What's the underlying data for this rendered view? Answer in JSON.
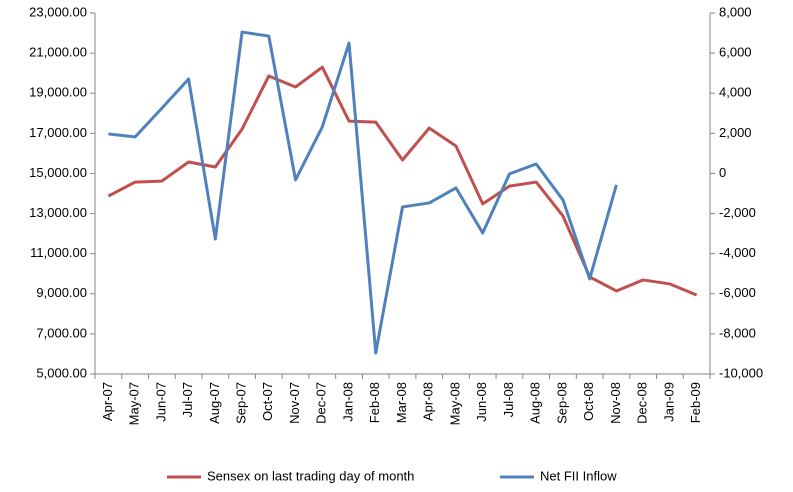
{
  "chart_data": {
    "type": "line",
    "categories": [
      "Apr-07",
      "May-07",
      "Jun-07",
      "Jul-07",
      "Aug-07",
      "Sep-07",
      "Oct-07",
      "Nov-07",
      "Dec-07",
      "Jan-08",
      "Feb-08",
      "Mar-08",
      "Apr-08",
      "May-08",
      "Jun-08",
      "Jul-08",
      "Aug-08",
      "Sep-08",
      "Oct-08",
      "Nov-08",
      "Dec-08",
      "Jan-09",
      "Feb-09"
    ],
    "series": [
      {
        "name": "Sensex on last trading day of month",
        "color": "#c0504d",
        "values": [
          13870,
          14570,
          14620,
          15570,
          15320,
          17210,
          19860,
          19310,
          20300,
          17610,
          17560,
          15670,
          17260,
          16370,
          13480,
          14370,
          14570,
          12880,
          9840,
          9140,
          9690,
          9490,
          8940
        ]
      },
      {
        "name": "Net FII Inflow",
        "color": "#4f81bd",
        "axis": "y2",
        "values": [
          1970,
          1820,
          3250,
          4710,
          -3270,
          7050,
          6850,
          -320,
          2320,
          6500,
          -8950,
          -1670,
          -1470,
          -720,
          -2970,
          -20,
          470,
          -1320,
          -5260,
          -570,
          null,
          null,
          null
        ]
      }
    ],
    "ylim": [
      5000,
      23000
    ],
    "yticks": [
      {
        "value": 5000,
        "label": "5,000.00"
      },
      {
        "value": 7000,
        "label": "7,000.00"
      },
      {
        "value": 9000,
        "label": "9,000.00"
      },
      {
        "value": 11000,
        "label": "11,000.00"
      },
      {
        "value": 13000,
        "label": "13,000.00"
      },
      {
        "value": 15000,
        "label": "15,000.00"
      },
      {
        "value": 17000,
        "label": "17,000.00"
      },
      {
        "value": 19000,
        "label": "19,000.00"
      },
      {
        "value": 21000,
        "label": "21,000.00"
      },
      {
        "value": 23000,
        "label": "23,000.00"
      }
    ],
    "y2lim": [
      -10000,
      8000
    ],
    "y2ticks": [
      {
        "value": -10000,
        "label": "-10,000"
      },
      {
        "value": -8000,
        "label": "-8,000"
      },
      {
        "value": -6000,
        "label": "-6,000"
      },
      {
        "value": -4000,
        "label": "-4,000"
      },
      {
        "value": -2000,
        "label": "-2,000"
      },
      0,
      {
        "value": 2000,
        "label": "2,000"
      },
      {
        "value": 4000,
        "label": "4,000"
      },
      {
        "value": 6000,
        "label": "6,000"
      },
      {
        "value": 8000,
        "label": "8,000"
      }
    ],
    "grid": false,
    "legend": "bottom"
  }
}
